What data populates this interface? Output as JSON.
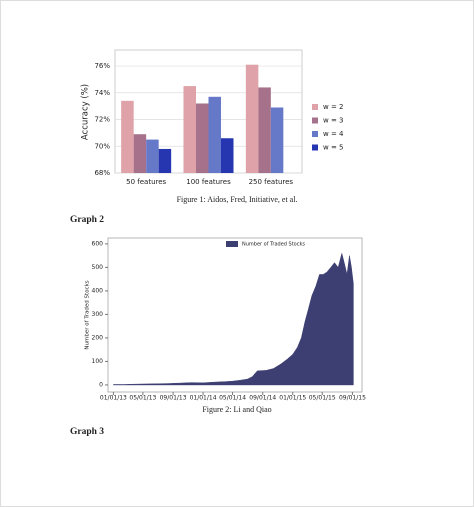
{
  "chart_data": [
    {
      "type": "bar",
      "caption": "Figure 1: Aidos, Fred, Initiative, et al.",
      "ylabel": "Accuracy (%)",
      "categories": [
        "50 features",
        "100 features",
        "250 features"
      ],
      "series": [
        {
          "name": "w = 2",
          "color": "#dea2a8",
          "values": [
            73.4,
            74.5,
            76.1
          ]
        },
        {
          "name": "w = 3",
          "color": "#a6718a",
          "values": [
            70.9,
            73.2,
            74.4
          ]
        },
        {
          "name": "w = 4",
          "color": "#6679c9",
          "values": [
            70.5,
            73.7,
            72.9
          ]
        },
        {
          "name": "w = 5",
          "color": "#2636b0",
          "values": [
            69.8,
            70.6,
            null
          ]
        }
      ],
      "ylim": [
        68,
        77.2
      ],
      "yticks": [
        {
          "value": 68,
          "label": "68%"
        },
        {
          "value": 70,
          "label": "70%"
        },
        {
          "value": 72,
          "label": "72%"
        },
        {
          "value": 74,
          "label": "74%"
        },
        {
          "value": 76,
          "label": "76%"
        }
      ],
      "grid": true,
      "legend": "right"
    },
    {
      "type": "area",
      "caption": "Figure 2: Li and Qiao",
      "ylabel": "Number of Traded Stocks",
      "x": [
        "2013-01-01",
        "2013-02-15",
        "2013-03-15",
        "2013-05-01",
        "2013-07-01",
        "2013-08-15",
        "2013-10-01",
        "2013-11-15",
        "2014-01-01",
        "2014-02-15",
        "2014-04-01",
        "2014-05-01",
        "2014-06-01",
        "2014-07-01",
        "2014-07-20",
        "2014-08-10",
        "2014-09-15",
        "2014-10-15",
        "2014-11-15",
        "2014-12-10",
        "2015-01-01",
        "2015-01-20",
        "2015-02-05",
        "2015-02-20",
        "2015-03-05",
        "2015-03-20",
        "2015-04-05",
        "2015-04-20",
        "2015-05-05",
        "2015-05-20",
        "2015-06-05",
        "2015-06-20",
        "2015-07-05",
        "2015-07-20",
        "2015-08-01",
        "2015-08-10",
        "2015-08-20",
        "2015-08-28",
        "2015-09-05"
      ],
      "series": [
        {
          "name": "Number of Traded Stocks",
          "color": "#3d3f73",
          "values": [
            2,
            2,
            3,
            4,
            5,
            6,
            8,
            10,
            9,
            12,
            14,
            16,
            20,
            25,
            35,
            60,
            62,
            70,
            90,
            110,
            130,
            160,
            200,
            270,
            320,
            380,
            420,
            470,
            470,
            480,
            500,
            520,
            500,
            560,
            510,
            470,
            550,
            500,
            430
          ]
        }
      ],
      "xlim": [
        "2012-12-10",
        "2015-10-10"
      ],
      "xticks": [
        {
          "value": "2013-01-01",
          "label": "01/01/13"
        },
        {
          "value": "2013-05-01",
          "label": "05/01/13"
        },
        {
          "value": "2013-09-01",
          "label": "09/01/13"
        },
        {
          "value": "2014-01-01",
          "label": "01/01/14"
        },
        {
          "value": "2014-05-01",
          "label": "05/01/14"
        },
        {
          "value": "2014-09-01",
          "label": "09/01/14"
        },
        {
          "value": "2015-01-01",
          "label": "01/01/15"
        },
        {
          "value": "2015-05-01",
          "label": "05/01/15"
        },
        {
          "value": "2015-09-01",
          "label": "09/01/15"
        }
      ],
      "ylim": [
        -30,
        625
      ],
      "yticks": [
        0,
        100,
        200,
        300,
        400,
        500,
        600
      ],
      "legend": "upper left"
    }
  ],
  "headings": [
    "Graph 2",
    "Graph 3"
  ]
}
